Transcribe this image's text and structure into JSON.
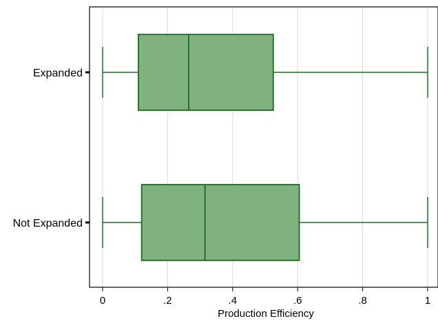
{
  "chart_data": {
    "type": "boxplot",
    "orientation": "horizontal",
    "xlabel": "Production Efficiency",
    "ylabel": "",
    "xlim": [
      0,
      1
    ],
    "xticks": [
      0,
      0.2,
      0.4,
      0.6,
      0.8,
      1
    ],
    "xtick_labels": [
      "0",
      ".2",
      ".4",
      ".6",
      ".8",
      "1"
    ],
    "grid": "vertical",
    "categories": [
      "Expanded",
      "Not Expanded"
    ],
    "boxes": [
      {
        "category": "Expanded",
        "min": 0.0,
        "q1": 0.11,
        "median": 0.265,
        "q3": 0.525,
        "max": 1.0
      },
      {
        "category": "Not Expanded",
        "min": 0.0,
        "q1": 0.12,
        "median": 0.315,
        "q3": 0.605,
        "max": 1.0
      }
    ],
    "colors": {
      "box_fill": "#7fb27f",
      "box_stroke": "#1f6b1f",
      "grid": "#d9d9d9",
      "axis": "#000000"
    }
  }
}
